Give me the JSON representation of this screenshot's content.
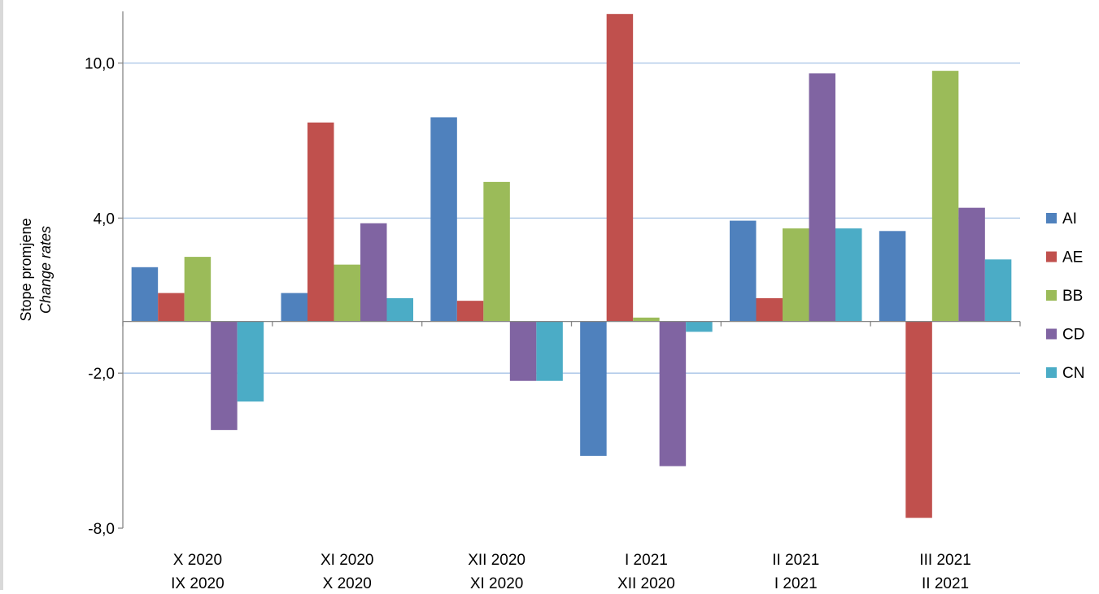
{
  "chart_data": {
    "type": "bar",
    "ylabel_line1": "Stope promjene",
    "ylabel_line2": "Change rates",
    "ylim": [
      -8,
      12
    ],
    "yticks": [
      10,
      4,
      -2,
      -8
    ],
    "ytick_labels": [
      "10,0",
      "4,0",
      "-2,0",
      "-8,0"
    ],
    "grid": true,
    "legend_position": "right",
    "categories": [
      [
        "X 2020",
        "IX 2020"
      ],
      [
        "XI 2020",
        "X 2020"
      ],
      [
        "XII 2020",
        "XI 2020"
      ],
      [
        "I 2021",
        "XII 2020"
      ],
      [
        "II 2021",
        "I 2021"
      ],
      [
        "III 2021",
        "II 2021"
      ]
    ],
    "series": [
      {
        "name": "AI",
        "color": "#4f81bd",
        "values": [
          2.1,
          1.1,
          7.9,
          -5.2,
          3.9,
          3.5
        ]
      },
      {
        "name": "AE",
        "color": "#c0504d",
        "values": [
          1.1,
          7.7,
          0.8,
          11.9,
          0.9,
          -7.6
        ]
      },
      {
        "name": "BB",
        "color": "#9bbb59",
        "values": [
          2.5,
          2.2,
          5.4,
          0.15,
          3.6,
          9.7
        ]
      },
      {
        "name": "CD",
        "color": "#8064a2",
        "values": [
          -4.2,
          3.8,
          -2.3,
          -5.6,
          9.6,
          4.4
        ]
      },
      {
        "name": "CN",
        "color": "#4bacc6",
        "values": [
          -3.1,
          0.9,
          -2.3,
          -0.4,
          3.6,
          2.4
        ]
      }
    ]
  }
}
